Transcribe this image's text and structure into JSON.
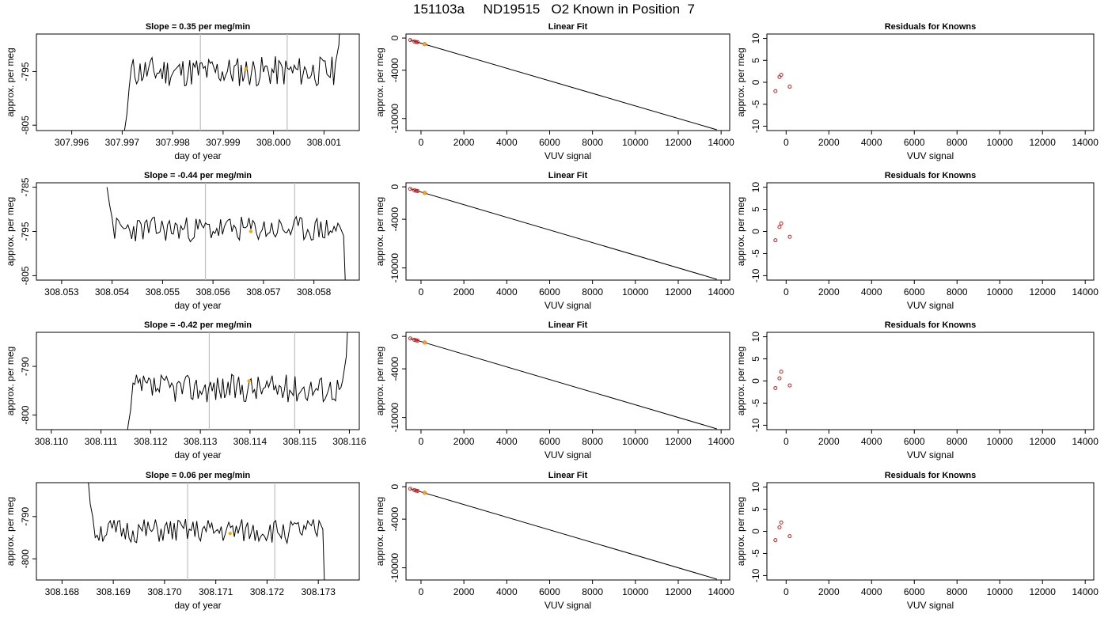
{
  "title": "151103a     ND19515   O2 Known in Position  7",
  "colors": {
    "line": "#000000",
    "frame": "#000000",
    "vline": "#bfbfbf",
    "marker": "#ffa500",
    "resid": "#cc2222"
  },
  "chart_data": [
    {
      "type": "line",
      "title": "Slope =  0.35  per meg/min",
      "xlabel": "day of year",
      "ylabel": "approx. per meg",
      "xlim": [
        307.9953,
        308.0017
      ],
      "ylim": [
        -806,
        -788
      ],
      "xticks": [
        {
          "v": 307.996,
          "label": "307.996"
        },
        {
          "v": 307.997,
          "label": "307.997"
        },
        {
          "v": 307.998,
          "label": "307.998"
        },
        {
          "v": 307.999,
          "label": "307.999"
        },
        {
          "v": 308.0,
          "label": "308.000"
        },
        {
          "v": 308.001,
          "label": "308.001"
        }
      ],
      "yticks": [
        {
          "v": -795,
          "label": "-795"
        },
        {
          "v": -805,
          "label": "-805"
        }
      ],
      "vlines": [
        307.99855,
        308.00027
      ],
      "marker": {
        "x": 307.99945,
        "y": -794.5
      },
      "xstart": 307.997,
      "xend": 308.00126,
      "ybase": -795,
      "amp": 1.8,
      "seed": 11,
      "head": [
        -810,
        -806,
        -803,
        -798
      ],
      "tail": [
        -790,
        -782
      ]
    },
    {
      "type": "line",
      "title": "Slope =  -0.44  per meg/min",
      "xlabel": "",
      "ylabel": "approx. per meg",
      "xlim": [
        308.0525,
        308.0589
      ],
      "ylim": [
        -806,
        -784
      ],
      "xticks": [
        {
          "v": 308.053,
          "label": "308.053"
        },
        {
          "v": 308.054,
          "label": "308.054"
        },
        {
          "v": 308.055,
          "label": "308.055"
        },
        {
          "v": 308.056,
          "label": "308.056"
        },
        {
          "v": 308.057,
          "label": "308.057"
        },
        {
          "v": 308.058,
          "label": "308.058"
        }
      ],
      "yticks": [
        {
          "v": -785,
          "label": "-785"
        },
        {
          "v": -795,
          "label": "-795"
        },
        {
          "v": -805,
          "label": "-805"
        }
      ],
      "vlines": [
        308.05585,
        308.05762
      ],
      "marker": {
        "x": 308.05675,
        "y": -795
      },
      "xstart": 308.0539,
      "xend": 308.05855,
      "ybase": -794.5,
      "amp": 1.8,
      "seed": 23,
      "head": [
        -785,
        -789,
        -792
      ],
      "tail": [
        -796,
        -808
      ]
    },
    {
      "type": "line",
      "title": "Slope =  -0.42  per meg/min",
      "xlabel": "",
      "ylabel": "approx. per meg",
      "xlim": [
        308.1097,
        308.1162
      ],
      "ylim": [
        -803,
        -783
      ],
      "xticks": [
        {
          "v": 308.11,
          "label": "308.110"
        },
        {
          "v": 308.111,
          "label": "308.111"
        },
        {
          "v": 308.112,
          "label": "308.112"
        },
        {
          "v": 308.113,
          "label": "308.113"
        },
        {
          "v": 308.114,
          "label": "308.114"
        },
        {
          "v": 308.115,
          "label": "308.115"
        },
        {
          "v": 308.116,
          "label": "308.116"
        }
      ],
      "yticks": [
        {
          "v": -790,
          "label": "-790"
        },
        {
          "v": -800,
          "label": "-800"
        }
      ],
      "vlines": [
        308.11318,
        308.1149
      ],
      "marker": {
        "x": 308.11398,
        "y": -793
      },
      "xstart": 308.1115,
      "xend": 308.1159,
      "ybase": -794.5,
      "amp": 1.8,
      "seed": 37,
      "head": [
        -806,
        -802,
        -799
      ],
      "tail": [
        -788,
        -780
      ]
    },
    {
      "type": "line",
      "title": "Slope =  0.06  per meg/min",
      "xlabel": "day of year",
      "ylabel": "approx. per meg",
      "xlim": [
        308.1675,
        308.1738
      ],
      "ylim": [
        -805,
        -782
      ],
      "xticks": [
        {
          "v": 308.168,
          "label": "308.168"
        },
        {
          "v": 308.169,
          "label": "308.169"
        },
        {
          "v": 308.17,
          "label": "308.170"
        },
        {
          "v": 308.171,
          "label": "308.171"
        },
        {
          "v": 308.172,
          "label": "308.172"
        },
        {
          "v": 308.173,
          "label": "308.173"
        }
      ],
      "yticks": [
        {
          "v": -790,
          "label": "-790"
        },
        {
          "v": -800,
          "label": "-800"
        }
      ],
      "vlines": [
        308.17045,
        308.17215
      ],
      "marker": {
        "x": 308.17128,
        "y": -794
      },
      "xstart": 308.1685,
      "xend": 308.17305,
      "ybase": -793.5,
      "amp": 1.8,
      "seed": 51,
      "head": [
        -780,
        -787,
        -790
      ],
      "tail": [
        -793,
        -808
      ]
    },
    {
      "type": "line",
      "title": "Linear Fit",
      "xlabel": "VUV signal",
      "ylabel": "approx. per meg",
      "xlim": [
        -700,
        14400
      ],
      "ylim": [
        -11500,
        500
      ],
      "xticks": [
        {
          "v": 0,
          "label": "0"
        },
        {
          "v": 2000,
          "label": "2000"
        },
        {
          "v": 4000,
          "label": "4000"
        },
        {
          "v": 6000,
          "label": "6000"
        },
        {
          "v": 8000,
          "label": "8000"
        },
        {
          "v": 10000,
          "label": "10000"
        },
        {
          "v": 12000,
          "label": "12000"
        },
        {
          "v": 14000,
          "label": "14000"
        }
      ],
      "yticks": [
        {
          "v": 0,
          "label": "0"
        },
        {
          "v": -4000,
          "label": "-4000"
        },
        {
          "v": -10000,
          "label": "-10000"
        }
      ],
      "line": [
        [
          -500,
          -250
        ],
        [
          13800,
          -11400
        ]
      ],
      "points": [
        [
          -500,
          -250
        ],
        [
          -310,
          -430
        ],
        [
          -230,
          -490
        ],
        [
          -160,
          -520
        ],
        [
          170,
          -760
        ]
      ],
      "marker": {
        "x": 170,
        "y": -760
      }
    },
    {
      "type": "scatter",
      "title": "Residuals for Knowns",
      "xlabel": "VUV signal",
      "ylabel": "approx. per meg",
      "xlim": [
        -900,
        14400
      ],
      "ylim": [
        -11,
        11
      ],
      "xticks": [
        {
          "v": 0,
          "label": "0"
        },
        {
          "v": 2000,
          "label": "2000"
        },
        {
          "v": 4000,
          "label": "4000"
        },
        {
          "v": 6000,
          "label": "6000"
        },
        {
          "v": 8000,
          "label": "8000"
        },
        {
          "v": 10000,
          "label": "10000"
        },
        {
          "v": 12000,
          "label": "12000"
        },
        {
          "v": 14000,
          "label": "14000"
        }
      ],
      "yticks": [
        {
          "v": 10,
          "label": "10"
        },
        {
          "v": 5,
          "label": "5"
        },
        {
          "v": 0,
          "label": "0"
        },
        {
          "v": -5,
          "label": "-5"
        },
        {
          "v": -10,
          "label": "-10"
        }
      ],
      "points": [
        [
          -500,
          -2
        ],
        [
          -310,
          1.2
        ],
        [
          -230,
          1.7
        ],
        [
          170,
          -1
        ]
      ]
    }
  ]
}
